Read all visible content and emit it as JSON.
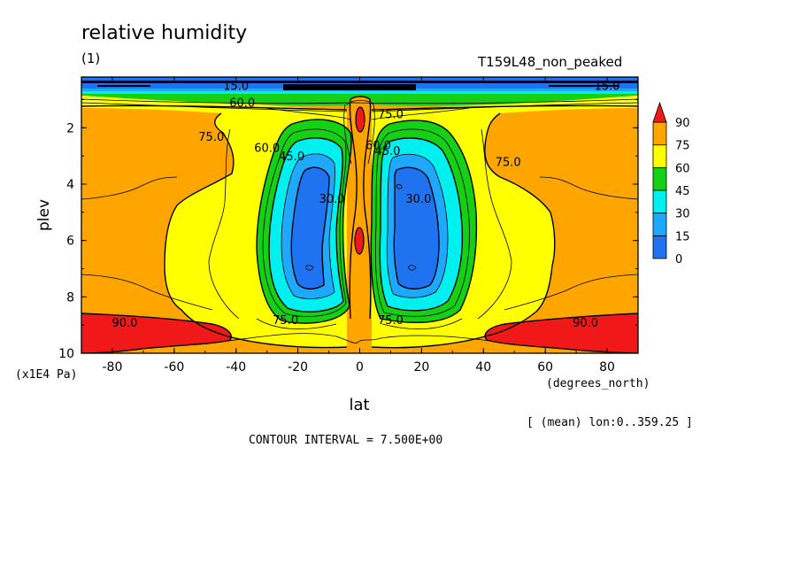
{
  "header": {
    "title": "relative humidity",
    "subtitle": "(1)",
    "run_label": "T159L48_non_peaked"
  },
  "footer": {
    "y_unit": "(x1E4 Pa)",
    "x_unit": "(degrees_north)",
    "mean_info": "[ (mean) lon:0..359.25 ]",
    "contour_interval": "CONTOUR INTERVAL = 7.500E+00"
  },
  "colors": {
    "level_0_15": "#1f73f0",
    "level_15_30": "#1ea8ff",
    "level_30_45": "#00f0f0",
    "level_45_60": "#15d015",
    "level_60_75": "#ffff00",
    "level_75_90": "#ffa500",
    "level_90_up": "#f01818"
  },
  "chart_data": {
    "type": "heatmap",
    "variable": "relative humidity",
    "xlabel": "lat",
    "ylabel": "plev",
    "xlim": [
      -90,
      90
    ],
    "ylim": [
      10,
      0.2
    ],
    "x_ticks": [
      -80,
      -60,
      -40,
      -20,
      0,
      20,
      40,
      60,
      80
    ],
    "y_ticks": [
      2,
      4,
      6,
      8,
      10
    ],
    "y_reversed": true,
    "contour_interval": 7.5,
    "colorbar": {
      "levels": [
        0,
        15,
        30,
        45,
        60,
        75,
        90
      ],
      "labels": [
        "0",
        "15",
        "30",
        "45",
        "60",
        "75",
        "90"
      ],
      "colors": [
        "#1f73f0",
        "#1ea8ff",
        "#00f0f0",
        "#15d015",
        "#ffff00",
        "#ffa500",
        "#f01818"
      ],
      "extend": "max"
    },
    "contour_labels": [
      {
        "text": "15.0",
        "lat": -40,
        "plev": 0.5
      },
      {
        "text": "15.0",
        "lat": 80,
        "plev": 0.5
      },
      {
        "text": "60.0",
        "lat": -38,
        "plev": 1.1
      },
      {
        "text": "75.0",
        "lat": -48,
        "plev": 2.3
      },
      {
        "text": "75.0",
        "lat": 10,
        "plev": 1.5
      },
      {
        "text": "75.0",
        "lat": 48,
        "plev": 3.2
      },
      {
        "text": "60.0",
        "lat": -30,
        "plev": 2.7
      },
      {
        "text": "45.0",
        "lat": -22,
        "plev": 3.0
      },
      {
        "text": "30.0",
        "lat": -9,
        "plev": 4.5
      },
      {
        "text": "30.0",
        "lat": 19,
        "plev": 4.5
      },
      {
        "text": "60.0",
        "lat": 6,
        "plev": 2.6
      },
      {
        "text": "45.0",
        "lat": 9,
        "plev": 2.8
      },
      {
        "text": "90.0",
        "lat": -76,
        "plev": 8.9
      },
      {
        "text": "90.0",
        "lat": 73,
        "plev": 8.9
      },
      {
        "text": "75.0",
        "lat": -24,
        "plev": 8.8
      },
      {
        "text": "75.0",
        "lat": 10,
        "plev": 8.8
      }
    ]
  }
}
